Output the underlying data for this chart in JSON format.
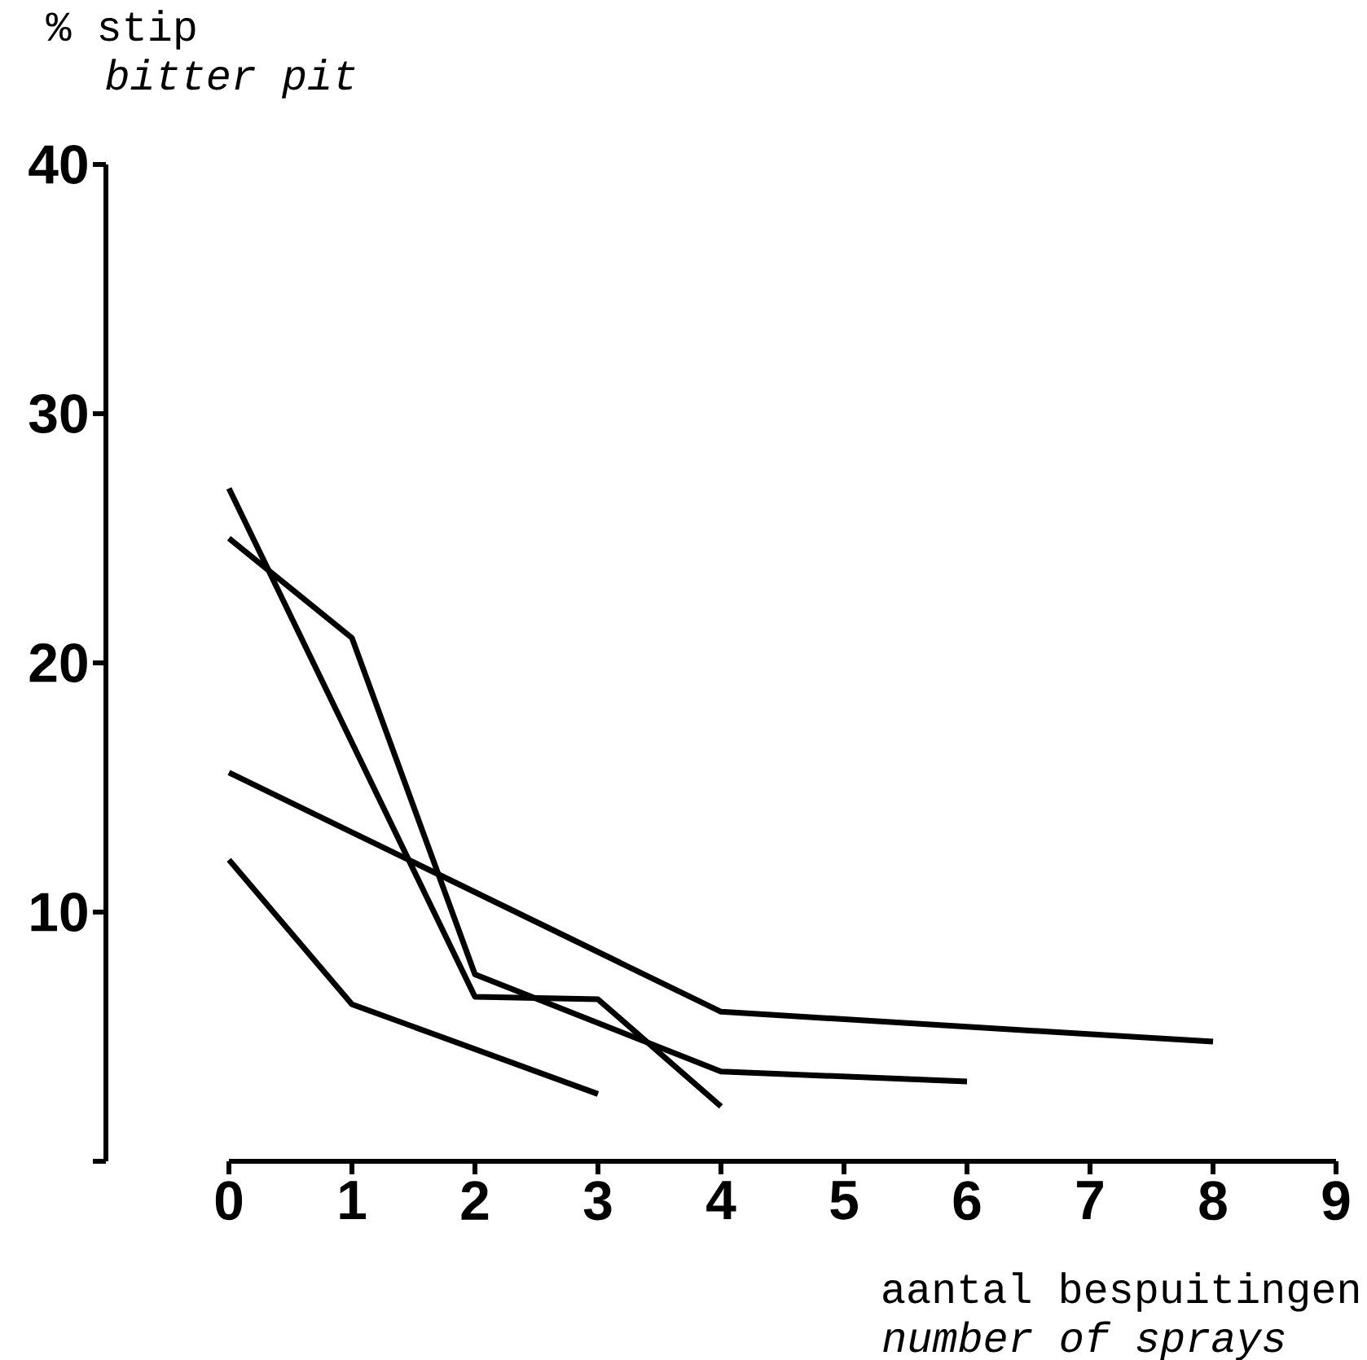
{
  "chart_data": {
    "type": "line",
    "ylabel": "% stip",
    "xlabel": "aantal bespuitingen",
    "annotations": [
      "bitter pit",
      "number of sprays"
    ],
    "xlim": [
      -1,
      9
    ],
    "ylim": [
      0,
      40
    ],
    "xticks": [
      0,
      1,
      2,
      3,
      4,
      5,
      6,
      7,
      8,
      9
    ],
    "yticks": [
      10,
      20,
      30,
      40
    ],
    "marker": "none",
    "line_style": "solid",
    "series": [
      {
        "color": "#000000",
        "x": [
          0,
          2,
          3,
          4
        ],
        "values": [
          27,
          6.6,
          6.5,
          2.2
        ]
      },
      {
        "color": "#000000",
        "x": [
          0,
          1,
          2,
          4,
          6
        ],
        "values": [
          25,
          21,
          7.5,
          3.6,
          3.2
        ]
      },
      {
        "color": "#000000",
        "x": [
          0,
          4,
          8
        ],
        "values": [
          15.6,
          6.0,
          4.8
        ]
      },
      {
        "color": "#000000",
        "x": [
          0,
          1,
          3
        ],
        "values": [
          12.1,
          6.3,
          2.7
        ]
      }
    ]
  }
}
